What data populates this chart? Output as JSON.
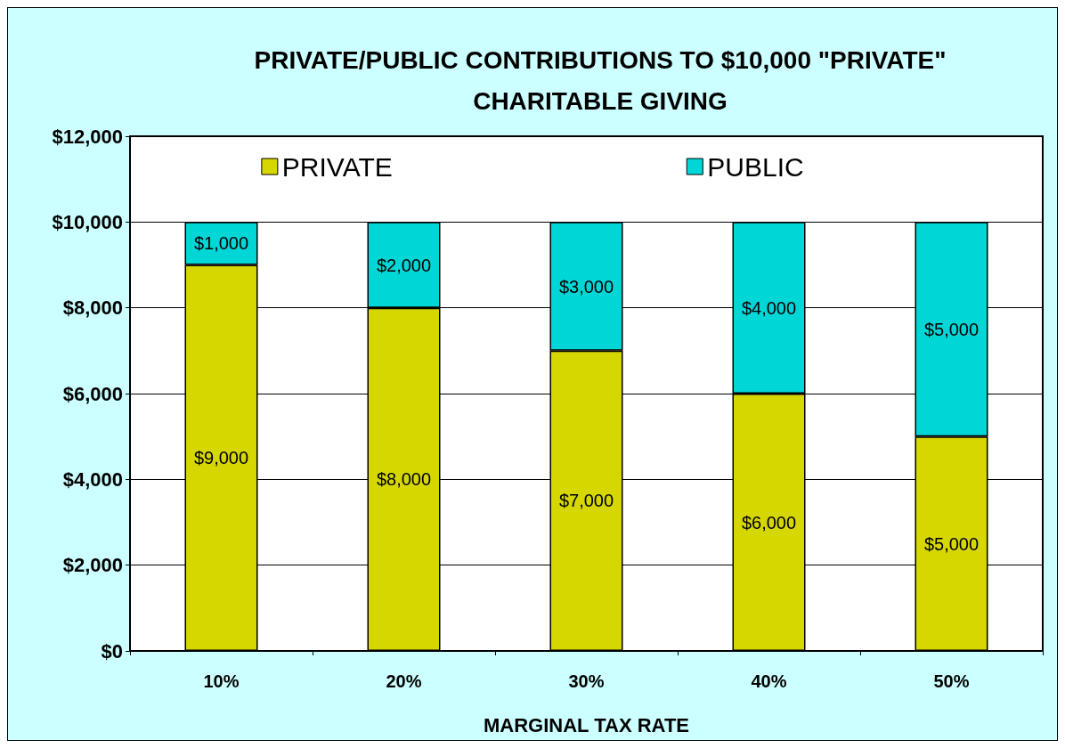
{
  "chart_data": {
    "type": "bar",
    "title": "PRIVATE/PUBLIC CONTRIBUTIONS TO $10,000 \"PRIVATE\"\nCHARITABLE GIVING",
    "xlabel": "MARGINAL TAX RATE",
    "categories": [
      "10%",
      "20%",
      "30%",
      "40%",
      "50%"
    ],
    "stacked": true,
    "series": [
      {
        "name": "PRIVATE",
        "color": "#d6d600",
        "values": [
          9000,
          8000,
          7000,
          6000,
          5000
        ],
        "value_labels": [
          "$9,000",
          "$8,000",
          "$7,000",
          "$6,000",
          "$5,000"
        ]
      },
      {
        "name": "PUBLIC",
        "color": "#00d6d6",
        "values": [
          1000,
          2000,
          3000,
          4000,
          5000
        ],
        "value_labels": [
          "$1,000",
          "$2,000",
          "$3,000",
          "$4,000",
          "$5,000"
        ]
      }
    ],
    "ylim": [
      0,
      12000
    ],
    "yticks": [
      {
        "value": 0,
        "label": "$0"
      },
      {
        "value": 2000,
        "label": "$2,000"
      },
      {
        "value": 4000,
        "label": "$4,000"
      },
      {
        "value": 6000,
        "label": "$6,000"
      },
      {
        "value": 8000,
        "label": "$8,000"
      },
      {
        "value": 10000,
        "label": "$10,000"
      },
      {
        "value": 12000,
        "label": "$12,000"
      }
    ],
    "grid": "y",
    "legend": "top"
  }
}
